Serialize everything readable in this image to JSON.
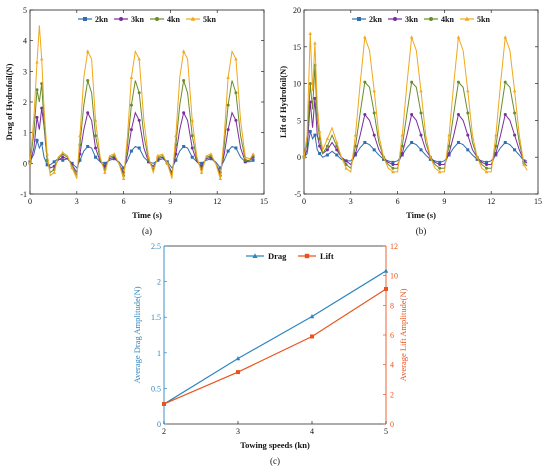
{
  "chart_data": [
    {
      "type": "line",
      "panel_label": "(a)",
      "xlabel": "Time (s)",
      "ylabel": "Drag of Hydrofoil(N)",
      "xlim": [
        0,
        15
      ],
      "ylim": [
        -1,
        5
      ],
      "xticks": [
        0,
        3,
        6,
        9,
        12,
        15
      ],
      "yticks": [
        -1,
        0,
        1,
        2,
        3,
        4,
        5
      ],
      "legend_placement": "top",
      "series": [
        {
          "name": "2kn",
          "color": "#2f6fb0",
          "marker": "square",
          "x": [
            0,
            0.25,
            0.45,
            0.6,
            0.75,
            0.9,
            1.1,
            1.3,
            1.55,
            1.8,
            2.1,
            2.4,
            2.7,
            3.0,
            3.2,
            3.45,
            3.7,
            3.95,
            4.2,
            4.5,
            4.8,
            5.1,
            5.4,
            5.7,
            6.0,
            6.25,
            6.5,
            6.75,
            7.0,
            7.3,
            7.6,
            7.9,
            8.2,
            8.5,
            8.8,
            9.1,
            9.35,
            9.6,
            9.85,
            10.1,
            10.4,
            10.7,
            11.0,
            11.3,
            11.6,
            11.9,
            12.2,
            12.45,
            12.7,
            12.95,
            13.2,
            13.5,
            13.8,
            14.1,
            14.3
          ],
          "y": [
            0.05,
            0.3,
            0.75,
            0.5,
            0.65,
            0.2,
            -0.05,
            -0.05,
            0.05,
            0.15,
            0.1,
            0.15,
            0.0,
            -0.15,
            0.1,
            0.4,
            0.55,
            0.5,
            0.2,
            0.05,
            0.0,
            0.1,
            0.15,
            0.05,
            -0.15,
            0.1,
            0.4,
            0.55,
            0.5,
            0.2,
            0.05,
            0.0,
            0.1,
            0.15,
            0.05,
            -0.15,
            0.1,
            0.4,
            0.55,
            0.5,
            0.2,
            0.05,
            0.0,
            0.1,
            0.15,
            0.05,
            -0.15,
            0.1,
            0.4,
            0.55,
            0.5,
            0.2,
            0.05,
            0.05,
            0.1
          ]
        },
        {
          "name": "3kn",
          "color": "#7b2c9e",
          "marker": "circle",
          "x": [
            0,
            0.25,
            0.45,
            0.6,
            0.75,
            0.9,
            1.1,
            1.3,
            1.55,
            1.8,
            2.1,
            2.4,
            2.7,
            3.0,
            3.2,
            3.45,
            3.7,
            3.95,
            4.2,
            4.5,
            4.8,
            5.1,
            5.4,
            5.7,
            6.0,
            6.25,
            6.5,
            6.75,
            7.0,
            7.3,
            7.6,
            7.9,
            8.2,
            8.5,
            8.8,
            9.1,
            9.35,
            9.6,
            9.85,
            10.1,
            10.4,
            10.7,
            11.0,
            11.3,
            11.6,
            11.9,
            12.2,
            12.45,
            12.7,
            12.95,
            13.2,
            13.5,
            13.8,
            14.1,
            14.3
          ],
          "y": [
            0.0,
            0.5,
            1.5,
            1.1,
            1.8,
            1.2,
            0.1,
            -0.15,
            -0.1,
            0.1,
            0.2,
            0.15,
            -0.05,
            -0.3,
            0.3,
            1.1,
            1.65,
            1.4,
            0.5,
            0.05,
            -0.1,
            0.15,
            0.2,
            0.0,
            -0.3,
            0.3,
            1.1,
            1.65,
            1.4,
            0.5,
            0.05,
            -0.1,
            0.15,
            0.2,
            0.0,
            -0.3,
            0.3,
            1.1,
            1.65,
            1.4,
            0.5,
            0.05,
            -0.1,
            0.15,
            0.2,
            0.0,
            -0.3,
            0.3,
            1.1,
            1.65,
            1.4,
            0.5,
            0.05,
            0.1,
            0.2
          ]
        },
        {
          "name": "4kn",
          "color": "#6a8c2b",
          "marker": "circle",
          "x": [
            0,
            0.25,
            0.45,
            0.6,
            0.75,
            0.9,
            1.1,
            1.3,
            1.55,
            1.8,
            2.1,
            2.4,
            2.7,
            3.0,
            3.2,
            3.45,
            3.7,
            3.95,
            4.2,
            4.5,
            4.8,
            5.1,
            5.4,
            5.7,
            6.0,
            6.25,
            6.5,
            6.75,
            7.0,
            7.3,
            7.6,
            7.9,
            8.2,
            8.5,
            8.8,
            9.1,
            9.35,
            9.6,
            9.85,
            10.1,
            10.4,
            10.7,
            11.0,
            11.3,
            11.6,
            11.9,
            12.2,
            12.45,
            12.7,
            12.95,
            13.2,
            13.5,
            13.8,
            14.1,
            14.3
          ],
          "y": [
            0.0,
            1.0,
            2.4,
            2.0,
            2.6,
            1.3,
            0.1,
            -0.3,
            -0.2,
            0.15,
            0.3,
            0.2,
            -0.1,
            -0.4,
            0.6,
            1.9,
            2.7,
            2.3,
            0.9,
            0.1,
            -0.2,
            0.2,
            0.25,
            0.0,
            -0.4,
            0.6,
            1.9,
            2.7,
            2.3,
            0.9,
            0.1,
            -0.2,
            0.2,
            0.25,
            0.0,
            -0.4,
            0.6,
            1.9,
            2.7,
            2.3,
            0.9,
            0.1,
            -0.2,
            0.2,
            0.25,
            0.0,
            -0.4,
            0.6,
            1.9,
            2.7,
            2.3,
            0.9,
            0.1,
            0.1,
            0.25
          ]
        },
        {
          "name": "5kn",
          "color": "#f0a81c",
          "marker": "triangle",
          "x": [
            0,
            0.25,
            0.45,
            0.6,
            0.75,
            0.9,
            1.1,
            1.3,
            1.55,
            1.8,
            2.1,
            2.4,
            2.7,
            3.0,
            3.2,
            3.45,
            3.7,
            3.95,
            4.2,
            4.5,
            4.8,
            5.1,
            5.4,
            5.7,
            6.0,
            6.25,
            6.5,
            6.75,
            7.0,
            7.3,
            7.6,
            7.9,
            8.2,
            8.5,
            8.8,
            9.1,
            9.35,
            9.6,
            9.85,
            10.1,
            10.4,
            10.7,
            11.0,
            11.3,
            11.6,
            11.9,
            12.2,
            12.45,
            12.7,
            12.95,
            13.2,
            13.5,
            13.8,
            14.1,
            14.3
          ],
          "y": [
            0.0,
            1.5,
            3.3,
            4.5,
            3.4,
            1.8,
            0.3,
            -0.4,
            -0.3,
            0.2,
            0.35,
            0.25,
            -0.15,
            -0.5,
            0.9,
            2.8,
            3.65,
            3.4,
            1.4,
            0.2,
            -0.3,
            0.25,
            0.3,
            0.0,
            -0.5,
            0.9,
            2.8,
            3.65,
            3.4,
            1.4,
            0.2,
            -0.3,
            0.25,
            0.3,
            0.0,
            -0.5,
            0.9,
            2.8,
            3.65,
            3.4,
            1.4,
            0.2,
            -0.3,
            0.25,
            0.3,
            0.0,
            -0.5,
            0.9,
            2.8,
            3.65,
            3.4,
            1.4,
            0.2,
            0.15,
            0.3
          ]
        }
      ]
    },
    {
      "type": "line",
      "panel_label": "(b)",
      "xlabel": "Time (s)",
      "ylabel": "Lift of Hydrofoil(N)",
      "xlim": [
        0,
        15
      ],
      "ylim": [
        -5,
        20
      ],
      "xticks": [
        0,
        3,
        6,
        9,
        12,
        15
      ],
      "yticks": [
        -5,
        0,
        5,
        10,
        15,
        20
      ],
      "legend_placement": "top",
      "series": [
        {
          "name": "2kn",
          "color": "#2f6fb0",
          "marker": "square",
          "x": [
            0,
            0.2,
            0.4,
            0.55,
            0.7,
            0.85,
            1.0,
            1.2,
            1.5,
            1.8,
            2.1,
            2.4,
            2.7,
            3.0,
            3.3,
            3.6,
            3.9,
            4.2,
            4.5,
            4.8,
            5.1,
            5.4,
            5.7,
            6.0,
            6.3,
            6.6,
            6.9,
            7.2,
            7.5,
            7.8,
            8.1,
            8.4,
            8.7,
            9.0,
            9.3,
            9.6,
            9.9,
            10.2,
            10.5,
            10.8,
            11.1,
            11.4,
            11.7,
            12.0,
            12.3,
            12.6,
            12.9,
            13.2,
            13.5,
            13.8,
            14.1,
            14.3
          ],
          "y": [
            0.0,
            0.5,
            3.5,
            2.5,
            3.0,
            1.0,
            0.5,
            0.0,
            0.3,
            0.8,
            0.3,
            -0.3,
            -0.5,
            -0.5,
            0.3,
            1.3,
            2.0,
            1.7,
            1.0,
            0.3,
            -0.3,
            -0.5,
            -0.7,
            -0.5,
            0.3,
            1.3,
            2.0,
            1.7,
            1.0,
            0.3,
            -0.3,
            -0.5,
            -0.7,
            -0.5,
            0.3,
            1.3,
            2.0,
            1.7,
            1.0,
            0.3,
            -0.3,
            -0.5,
            -0.7,
            -0.5,
            0.3,
            1.3,
            2.0,
            1.7,
            1.0,
            0.3,
            -0.5,
            -0.5
          ]
        },
        {
          "name": "3kn",
          "color": "#7b2c9e",
          "marker": "circle",
          "x": [
            0,
            0.2,
            0.4,
            0.55,
            0.7,
            0.85,
            1.0,
            1.2,
            1.5,
            1.8,
            2.1,
            2.4,
            2.7,
            3.0,
            3.3,
            3.6,
            3.9,
            4.2,
            4.5,
            4.8,
            5.1,
            5.4,
            5.7,
            6.0,
            6.3,
            6.6,
            6.9,
            7.2,
            7.5,
            7.8,
            8.1,
            8.4,
            8.7,
            9.0,
            9.3,
            9.6,
            9.9,
            10.2,
            10.5,
            10.8,
            11.1,
            11.4,
            11.7,
            12.0,
            12.3,
            12.6,
            12.9,
            13.2,
            13.5,
            13.8,
            14.1,
            14.3
          ],
          "y": [
            0.0,
            1.0,
            7.5,
            4.0,
            8.0,
            3.0,
            1.5,
            0.5,
            1.0,
            2.0,
            1.0,
            0.0,
            -0.5,
            -1.0,
            0.5,
            3.0,
            5.8,
            5.0,
            3.0,
            1.0,
            0.0,
            -0.7,
            -1.0,
            -1.0,
            0.5,
            3.0,
            5.8,
            5.0,
            3.0,
            1.0,
            0.0,
            -0.7,
            -1.0,
            -1.0,
            0.5,
            3.0,
            5.8,
            5.0,
            3.0,
            1.0,
            0.0,
            -0.7,
            -1.0,
            -1.0,
            0.5,
            3.0,
            5.8,
            5.0,
            3.0,
            1.0,
            -0.5,
            -0.8
          ]
        },
        {
          "name": "4kn",
          "color": "#6a8c2b",
          "marker": "circle",
          "x": [
            0,
            0.2,
            0.4,
            0.55,
            0.7,
            0.85,
            1.0,
            1.2,
            1.5,
            1.8,
            2.1,
            2.4,
            2.7,
            3.0,
            3.3,
            3.6,
            3.9,
            4.2,
            4.5,
            4.8,
            5.1,
            5.4,
            5.7,
            6.0,
            6.3,
            6.6,
            6.9,
            7.2,
            7.5,
            7.8,
            8.1,
            8.4,
            8.7,
            9.0,
            9.3,
            9.6,
            9.9,
            10.2,
            10.5,
            10.8,
            11.1,
            11.4,
            11.7,
            12.0,
            12.3,
            12.6,
            12.9,
            13.2,
            13.5,
            13.8,
            14.1,
            14.3
          ],
          "y": [
            0.0,
            2.0,
            10.0,
            6.5,
            12.5,
            5.0,
            2.5,
            0.5,
            1.5,
            3.0,
            1.5,
            0.0,
            -1.0,
            -1.5,
            1.5,
            6.0,
            10.2,
            9.5,
            6.0,
            2.0,
            0.0,
            -1.0,
            -1.5,
            -1.5,
            1.5,
            6.0,
            10.2,
            9.5,
            6.0,
            2.0,
            0.0,
            -1.0,
            -1.5,
            -1.5,
            1.5,
            6.0,
            10.2,
            9.5,
            6.0,
            2.0,
            0.0,
            -1.0,
            -1.5,
            -1.5,
            1.5,
            6.0,
            10.2,
            9.5,
            6.0,
            2.0,
            -0.8,
            -1.2
          ]
        },
        {
          "name": "5kn",
          "color": "#f0a81c",
          "marker": "triangle",
          "x": [
            0,
            0.2,
            0.4,
            0.55,
            0.7,
            0.85,
            1.0,
            1.2,
            1.5,
            1.8,
            2.1,
            2.4,
            2.7,
            3.0,
            3.3,
            3.6,
            3.9,
            4.2,
            4.5,
            4.8,
            5.1,
            5.4,
            5.7,
            6.0,
            6.3,
            6.6,
            6.9,
            7.2,
            7.5,
            7.8,
            8.1,
            8.4,
            8.7,
            9.0,
            9.3,
            9.6,
            9.9,
            10.2,
            10.5,
            10.8,
            11.1,
            11.4,
            11.7,
            12.0,
            12.3,
            12.6,
            12.9,
            13.2,
            13.5,
            13.8,
            14.1,
            14.3
          ],
          "y": [
            0.0,
            3.0,
            16.8,
            9.0,
            15.5,
            7.0,
            3.5,
            1.0,
            2.5,
            4.0,
            2.0,
            0.0,
            -1.5,
            -2.0,
            3.0,
            10.0,
            16.3,
            14.5,
            9.0,
            3.0,
            0.0,
            -1.5,
            -2.0,
            -2.0,
            3.0,
            10.0,
            16.3,
            14.5,
            9.0,
            3.0,
            0.0,
            -1.5,
            -2.0,
            -2.0,
            3.0,
            10.0,
            16.3,
            14.5,
            9.0,
            3.0,
            0.0,
            -1.5,
            -2.0,
            -2.0,
            3.0,
            10.0,
            16.3,
            14.5,
            9.0,
            3.0,
            -1.0,
            -1.8
          ]
        }
      ]
    },
    {
      "type": "line",
      "panel_label": "(c)",
      "xlabel": "Towing speeds (kn)",
      "ylabel": "Average Drag Amplitude(N)",
      "y2label": "Average Lift Amplitude(N)",
      "x": [
        2,
        3,
        4,
        5
      ],
      "xlim": [
        2,
        5
      ],
      "ylim": [
        0,
        2.5
      ],
      "y2lim": [
        0,
        12
      ],
      "xticks": [
        2,
        3,
        4,
        5
      ],
      "yticks": [
        0,
        0.5,
        1,
        1.5,
        2,
        2.5
      ],
      "y2ticks": [
        0,
        2,
        4,
        6,
        8,
        10,
        12
      ],
      "legend_placement": "top",
      "series": [
        {
          "name": "Drag",
          "axis": "left",
          "color": "#2e86c1",
          "marker": "triangle",
          "values": [
            0.28,
            0.92,
            1.51,
            2.15
          ]
        },
        {
          "name": "Lift",
          "axis": "right",
          "color": "#e8541e",
          "marker": "square",
          "values": [
            1.35,
            3.5,
            5.9,
            9.1
          ]
        }
      ]
    }
  ]
}
